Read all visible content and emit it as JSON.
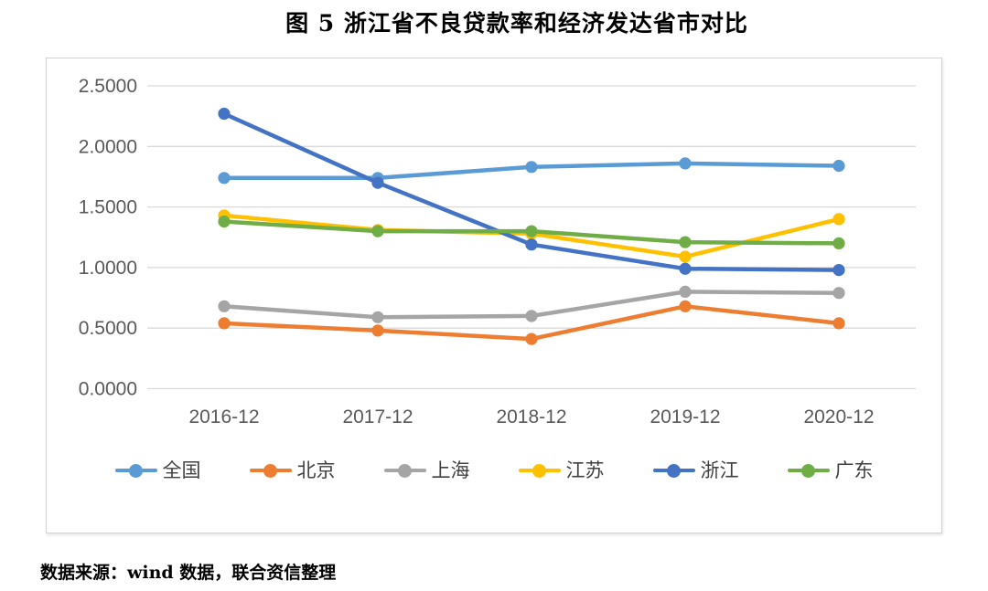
{
  "page": {
    "title": "图 5 浙江省不良贷款率和经济发达省市对比",
    "source_note": "数据来源：wind 数据，联合资信整理"
  },
  "chart_data": {
    "type": "line",
    "title": "图 5 浙江省不良贷款率和经济发达省市对比",
    "categories": [
      "2016-12",
      "2017-12",
      "2018-12",
      "2019-12",
      "2020-12"
    ],
    "series": [
      {
        "name": "全国",
        "color": "#5B9BD5",
        "values": [
          1.74,
          1.74,
          1.83,
          1.86,
          1.84
        ]
      },
      {
        "name": "北京",
        "color": "#ED7D31",
        "values": [
          0.54,
          0.48,
          0.41,
          0.68,
          0.54
        ]
      },
      {
        "name": "上海",
        "color": "#A5A5A5",
        "values": [
          0.68,
          0.59,
          0.6,
          0.8,
          0.79
        ]
      },
      {
        "name": "江苏",
        "color": "#FFC000",
        "values": [
          1.43,
          1.31,
          1.28,
          1.09,
          1.4
        ]
      },
      {
        "name": "浙江",
        "color": "#4472C4",
        "values": [
          2.27,
          1.7,
          1.19,
          0.99,
          0.98
        ]
      },
      {
        "name": "广东",
        "color": "#70AD47",
        "values": [
          1.38,
          1.3,
          1.3,
          1.21,
          1.2
        ]
      }
    ],
    "ylim": [
      0.0,
      2.5
    ],
    "ytick_labels": [
      "2.5000",
      "2.0000",
      "1.5000",
      "1.0000",
      "0.5000",
      "0.0000"
    ],
    "grid": "horizontal",
    "legend_position": "bottom",
    "marker": "circle",
    "styles": {
      "grid_color": "#D9D9D9",
      "axis_text_color": "#595959",
      "legend_text_color": "#404040",
      "frame_border_color": "#D2D2D2",
      "background": "#FFFFFF"
    }
  }
}
